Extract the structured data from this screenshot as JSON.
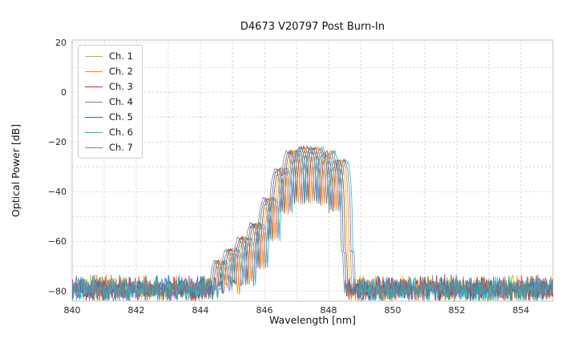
{
  "chart_data": {
    "type": "line",
    "title": "D4673 V20797 Post Burn-In",
    "xlabel": "Wavelength [nm]",
    "ylabel": "Optical Power [dB]",
    "xlim": [
      840,
      855
    ],
    "ylim": [
      -84,
      21
    ],
    "xticks": [
      840,
      842,
      844,
      846,
      848,
      850,
      852,
      854
    ],
    "yticks": [
      20,
      0,
      -20,
      -40,
      -60,
      -80
    ],
    "x_grid_step_nm": 1,
    "y_grid_step_db": 10,
    "grid": true,
    "grid_color": "#cfcfcf",
    "frame_color": "#c0c0c0",
    "legend_position": "upper-left",
    "series": [
      {
        "name": "Ch. 1",
        "color": "#bcbd22",
        "wavelength_offset_nm": 0.0
      },
      {
        "name": "Ch. 2",
        "color": "#ff7f0e",
        "wavelength_offset_nm": 0.06
      },
      {
        "name": "Ch. 3",
        "color": "#d62728",
        "wavelength_offset_nm": -0.06
      },
      {
        "name": "Ch. 4",
        "color": "#9467bd",
        "wavelength_offset_nm": 0.12
      },
      {
        "name": "Ch. 5",
        "color": "#1f77b4",
        "wavelength_offset_nm": -0.12
      },
      {
        "name": "Ch. 6",
        "color": "#17becf",
        "wavelength_offset_nm": 0.18
      },
      {
        "name": "Ch. 7",
        "color": "#7f7f7f",
        "wavelength_offset_nm": -0.18
      }
    ],
    "spectrum_model": {
      "noise_floor_db": -79,
      "noise_spread_db": 6,
      "band_nm": [
        844.25,
        848.7
      ],
      "peak_power_db": -22,
      "fringe_period_nm": 0.38,
      "fringe_center_nm": 847.25,
      "fringe_min_clip": 0.08,
      "envelope_points": [
        [
          844.25,
          -80
        ],
        [
          844.6,
          -68
        ],
        [
          845.0,
          -63
        ],
        [
          845.4,
          -58
        ],
        [
          845.8,
          -52
        ],
        [
          846.1,
          -44
        ],
        [
          846.4,
          -34
        ],
        [
          846.7,
          -26
        ],
        [
          847.0,
          -22.5
        ],
        [
          847.3,
          -22
        ],
        [
          847.7,
          -22.5
        ],
        [
          848.0,
          -24
        ],
        [
          848.25,
          -26.5
        ],
        [
          848.45,
          -28
        ],
        [
          848.55,
          -32
        ],
        [
          848.62,
          -55
        ],
        [
          848.7,
          -90
        ]
      ]
    }
  }
}
